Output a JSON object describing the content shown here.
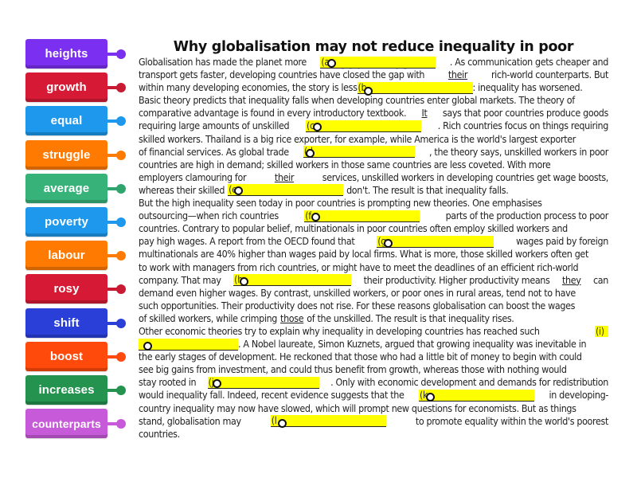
{
  "title": "Why globalisation may not reduce inequality in poor countries",
  "words": [
    {
      "label": "heights",
      "color": "#7b2ff0",
      "dot": "#7b2ff0"
    },
    {
      "label": "growth",
      "color": "#d61a35",
      "dot": "#c81a32"
    },
    {
      "label": "equal",
      "color": "#1e98ec",
      "dot": "#1e98ec"
    },
    {
      "label": "struggle",
      "color": "#ff7a00",
      "dot": "#ff7a00"
    },
    {
      "label": "average",
      "color": "#37b37a",
      "dot": "#2fa56d"
    },
    {
      "label": "poverty",
      "color": "#1e98ec",
      "dot": "#1e98ec"
    },
    {
      "label": "labour",
      "color": "#ff7a00",
      "dot": "#ff7a00"
    },
    {
      "label": "rosy",
      "color": "#d61a35",
      "dot": "#c81a32"
    },
    {
      "label": "shift",
      "color": "#2a3fd8",
      "dot": "#2a3fd8"
    },
    {
      "label": "boost",
      "color": "#ff4a0c",
      "dot": "#ff4a0c"
    },
    {
      "label": "increases",
      "color": "#23934f",
      "dot": "#23934f"
    },
    {
      "label": "counterparts",
      "color": "#c75ad8",
      "dot": "#c75ad8"
    }
  ],
  "gaps": {
    "a": "(a",
    "b": "(b",
    "c": "(c",
    "d": "(d",
    "e": "(e",
    "f": "(f",
    "g": "(g",
    "h": "(h",
    "i": "(i)",
    "j": "(j",
    "k": "(k",
    "l": "(l"
  },
  "text": {
    "l1a": "Globalisation has made the planet more",
    "l1b": ". As communication gets cheaper and",
    "l2a": "transport gets faster, developing countries have closed the gap with",
    "l2u": "their",
    "l2b": "rich-world counterparts. But",
    "l3a": "within many developing economies, the story is less",
    "l3b": ": inequality has worsened.",
    "l4": "Basic theory predicts that inequality falls when developing countries enter global markets. The theory of",
    "l5a": "comparative advantage is found in every introductory textbook.",
    "l5u": "It",
    "l5b": "says that poor countries produce goods",
    "l6a": "requiring large amounts of unskilled",
    "l6b": ". Rich countries focus on things requiring",
    "l7": "skilled workers. Thailand is a big rice exporter, for example, while America is the world's largest exporter",
    "l8a": "of financial services. As global trade",
    "l8b": ", the theory says, unskilled workers in poor",
    "l9": "countries are high in demand; skilled workers in those same countries are less coveted. With more",
    "l10a": "employers clamouring for",
    "l10u": "their",
    "l10b": "services, unskilled workers in developing countries get wage boosts,",
    "l11a": "whereas their skilled",
    "l11b": "don't. The result is that inequality falls.",
    "l12": "But the high inequality seen today in poor countries is prompting new theories. One emphasises",
    "l13a": "outsourcing—when rich countries",
    "l13b": "parts of the production process to poor",
    "l14": "countries. Contrary to popular belief, multinationals in poor countries often employ skilled workers and",
    "l15a": "pay high wages. A report from the OECD found that",
    "l15b": "wages paid by foreign",
    "l16": "multinationals are 40% higher than wages paid by local firms. What is more, those skilled workers often get",
    "l17": "to work with managers from rich countries, or might have to meet the deadlines of an efficient rich-world",
    "l18a": "company. That may",
    "l18b": "their productivity. Higher productivity means",
    "l18u": "they",
    "l18c": "can",
    "l19": "demand even higher wages. By contrast, unskilled workers, or poor ones in rural areas, tend not to have",
    "l20": "such opportunities. Their productivity does not rise. For these reasons globalisation can boost the wages",
    "l21a": "of skilled workers, while crimping",
    "l21u": "those",
    "l21b": "of the unskilled. The result is that inequality rises.",
    "l22a": "Other economic theories try to explain why inequality in developing countries has reached such",
    "l23b": ". A Nobel laureate, Simon Kuznets, argued that growing inequality was inevitable in",
    "l24": "the early stages of development. He reckoned that those who had a little bit of money to begin with could",
    "l25": "see big gains from investment, and could thus benefit from growth, whereas those with nothing would",
    "l26a": "stay rooted in",
    "l26b": ". Only with economic development and demands for redistribution",
    "l27a": "would inequality fall. Indeed, recent evidence suggests that the",
    "l27b": "in developing-",
    "l28": "country inequality may now have slowed, which will prompt new questions for economists. But as things",
    "l29a": "stand, globalisation may",
    "l29b": "to promote equality within the world's poorest",
    "l30": "countries."
  }
}
